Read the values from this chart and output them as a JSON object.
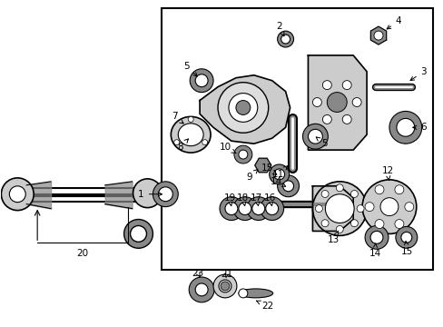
{
  "bg_color": "#ffffff",
  "line_color": "#000000",
  "gray_fill": "#cccccc",
  "gray_dark": "#888888",
  "gray_light": "#dddddd"
}
